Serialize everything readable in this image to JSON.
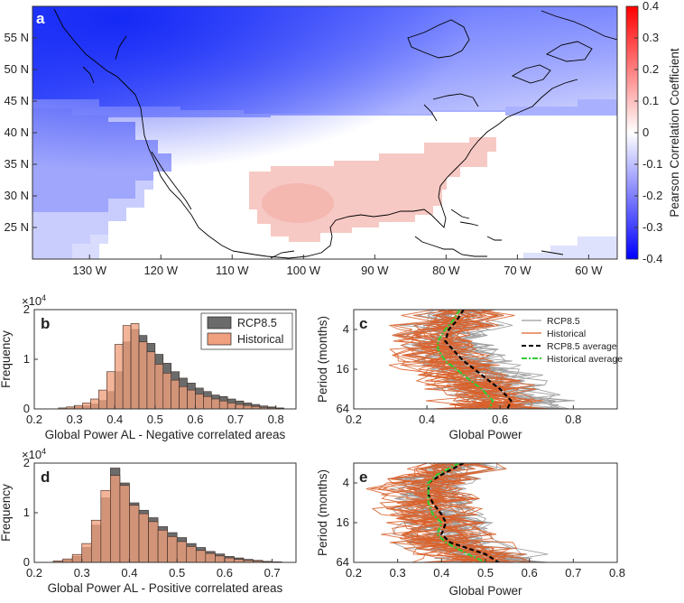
{
  "chart_data": [
    {
      "panel": "a",
      "type": "heatmap",
      "title": "",
      "x_ticks": [
        "130 W",
        "120 W",
        "110 W",
        "100 W",
        "90 W",
        "80 W",
        "70 W",
        "60 W"
      ],
      "y_ticks": [
        "55 N",
        "50 N",
        "45 N",
        "40 N",
        "35 N",
        "30 N",
        "25 N"
      ],
      "xlim": [
        -138,
        -56
      ],
      "ylim": [
        20,
        60
      ],
      "colorbar": {
        "label": "Pearson Correlation Coefficient",
        "ticks": [
          "0.4",
          "0.3",
          "0.2",
          "0.1",
          "0",
          "-0.1",
          "-0.2",
          "-0.3",
          "-0.4"
        ],
        "range": [
          -0.4,
          0.4
        ],
        "colors": {
          "neg": "#0000ff",
          "zero": "#ffffff",
          "pos": "#ff0000"
        }
      }
    },
    {
      "panel": "b",
      "type": "bar",
      "xlabel": "Global Power AL - Negative correlated areas",
      "ylabel": "Frequency",
      "exponent": "×10",
      "exponent_power": "4",
      "xlim": [
        0.2,
        0.85
      ],
      "ylim": [
        0,
        2
      ],
      "x_ticks": [
        "0.2",
        "0.3",
        "0.4",
        "0.5",
        "0.6",
        "0.7",
        "0.8"
      ],
      "y_ticks": [
        "0",
        "1",
        "2"
      ],
      "bin_width": 0.02,
      "series": [
        {
          "name": "RCP8.5",
          "color": "#6b6b6b",
          "x": [
            0.27,
            0.29,
            0.31,
            0.33,
            0.35,
            0.37,
            0.39,
            0.41,
            0.43,
            0.45,
            0.47,
            0.49,
            0.51,
            0.53,
            0.55,
            0.57,
            0.59,
            0.61,
            0.63,
            0.65,
            0.67,
            0.69,
            0.71,
            0.73,
            0.75,
            0.77,
            0.79,
            0.81
          ],
          "values": [
            0.01,
            0.02,
            0.04,
            0.06,
            0.1,
            0.17,
            0.35,
            0.75,
            1.35,
            1.6,
            1.48,
            1.32,
            1.1,
            0.92,
            0.75,
            0.62,
            0.52,
            0.42,
            0.35,
            0.28,
            0.25,
            0.2,
            0.16,
            0.12,
            0.09,
            0.06,
            0.04,
            0.02
          ]
        },
        {
          "name": "Historical",
          "color": "#f0a07e",
          "x": [
            0.27,
            0.29,
            0.31,
            0.33,
            0.35,
            0.37,
            0.39,
            0.41,
            0.43,
            0.45,
            0.47,
            0.49,
            0.51,
            0.53,
            0.55,
            0.57,
            0.59,
            0.61,
            0.63,
            0.65,
            0.67,
            0.69,
            0.71,
            0.73,
            0.75,
            0.77,
            0.79,
            0.81
          ],
          "values": [
            0.02,
            0.04,
            0.07,
            0.12,
            0.2,
            0.38,
            0.75,
            1.3,
            1.68,
            1.72,
            1.35,
            1.15,
            0.9,
            0.72,
            0.58,
            0.45,
            0.38,
            0.3,
            0.25,
            0.2,
            0.16,
            0.12,
            0.09,
            0.07,
            0.05,
            0.03,
            0.02,
            0.01
          ]
        }
      ]
    },
    {
      "panel": "c",
      "type": "line",
      "xlabel": "Global Power",
      "ylabel": "Period (months)",
      "xlim": [
        0.2,
        0.92
      ],
      "x_ticks": [
        "0.2",
        "0.4",
        "0.6",
        "0.8"
      ],
      "y_ticks": [
        "4",
        "16",
        "64"
      ],
      "y_scale": "log2",
      "ylim": [
        2,
        64
      ],
      "ensemble_members_drawn": 22,
      "legend": [
        {
          "name": "RCP8.5",
          "color": "#9a9a9a",
          "style": "solid"
        },
        {
          "name": "Historical",
          "color": "#d9602a",
          "style": "solid"
        },
        {
          "name": "RCP8.5 average",
          "color": "#000000",
          "style": "dashed"
        },
        {
          "name": "Historical average",
          "color": "#33cc33",
          "style": "dashdot"
        }
      ],
      "series": [
        {
          "name": "RCP8.5 average",
          "period": [
            2,
            3,
            4,
            6,
            8,
            12,
            16,
            24,
            32,
            48,
            64
          ],
          "power": [
            0.5,
            0.48,
            0.46,
            0.45,
            0.47,
            0.5,
            0.53,
            0.57,
            0.6,
            0.63,
            0.62
          ]
        },
        {
          "name": "Historical average",
          "period": [
            2,
            3,
            4,
            6,
            8,
            12,
            16,
            24,
            32,
            48,
            64
          ],
          "power": [
            0.49,
            0.47,
            0.45,
            0.43,
            0.43,
            0.45,
            0.48,
            0.52,
            0.55,
            0.58,
            0.57
          ]
        }
      ]
    },
    {
      "panel": "d",
      "type": "bar",
      "xlabel": "Global Power AL - Positive correlated areas",
      "ylabel": "Frequency",
      "exponent": "×10",
      "exponent_power": "4",
      "xlim": [
        0.2,
        0.75
      ],
      "ylim": [
        0,
        2
      ],
      "x_ticks": [
        "0.2",
        "0.3",
        "0.4",
        "0.5",
        "0.6",
        "0.7"
      ],
      "y_ticks": [
        "0",
        "1",
        "2"
      ],
      "bin_width": 0.02,
      "series": [
        {
          "name": "RCP8.5",
          "color": "#6b6b6b",
          "x": [
            0.25,
            0.27,
            0.29,
            0.31,
            0.33,
            0.35,
            0.37,
            0.39,
            0.41,
            0.43,
            0.45,
            0.47,
            0.49,
            0.51,
            0.53,
            0.55,
            0.57,
            0.59,
            0.61,
            0.63,
            0.65,
            0.67,
            0.69,
            0.71
          ],
          "values": [
            0.02,
            0.05,
            0.12,
            0.3,
            0.75,
            1.3,
            1.9,
            1.6,
            1.2,
            1.05,
            0.9,
            0.72,
            0.6,
            0.5,
            0.38,
            0.3,
            0.22,
            0.17,
            0.12,
            0.09,
            0.06,
            0.04,
            0.02,
            0.01
          ]
        },
        {
          "name": "Historical",
          "color": "#f0a07e",
          "x": [
            0.25,
            0.27,
            0.29,
            0.31,
            0.33,
            0.35,
            0.37,
            0.39,
            0.41,
            0.43,
            0.45,
            0.47,
            0.49,
            0.51,
            0.53,
            0.55,
            0.57,
            0.59,
            0.61,
            0.63,
            0.65,
            0.67,
            0.69,
            0.71
          ],
          "values": [
            0.03,
            0.07,
            0.16,
            0.38,
            0.85,
            1.45,
            1.75,
            1.55,
            1.15,
            0.98,
            0.82,
            0.65,
            0.52,
            0.42,
            0.32,
            0.24,
            0.18,
            0.13,
            0.09,
            0.06,
            0.04,
            0.03,
            0.01,
            0.01
          ]
        }
      ]
    },
    {
      "panel": "e",
      "type": "line",
      "xlabel": "Global Power",
      "ylabel": "Period (months)",
      "xlim": [
        0.2,
        0.8
      ],
      "x_ticks": [
        "0.2",
        "0.3",
        "0.4",
        "0.5",
        "0.6",
        "0.7",
        "0.8"
      ],
      "y_ticks": [
        "4",
        "16",
        "64"
      ],
      "y_scale": "log2",
      "ylim": [
        2,
        64
      ],
      "ensemble_members_drawn": 22,
      "series": [
        {
          "name": "RCP8.5 average",
          "period": [
            2,
            3,
            4,
            6,
            8,
            12,
            16,
            24,
            32,
            48,
            64
          ],
          "power": [
            0.45,
            0.4,
            0.37,
            0.37,
            0.38,
            0.4,
            0.41,
            0.4,
            0.42,
            0.5,
            0.53
          ]
        },
        {
          "name": "Historical average",
          "period": [
            2,
            3,
            4,
            6,
            8,
            12,
            16,
            24,
            32,
            48,
            64
          ],
          "power": [
            0.44,
            0.39,
            0.37,
            0.37,
            0.37,
            0.38,
            0.4,
            0.39,
            0.41,
            0.46,
            0.5
          ]
        }
      ]
    }
  ]
}
